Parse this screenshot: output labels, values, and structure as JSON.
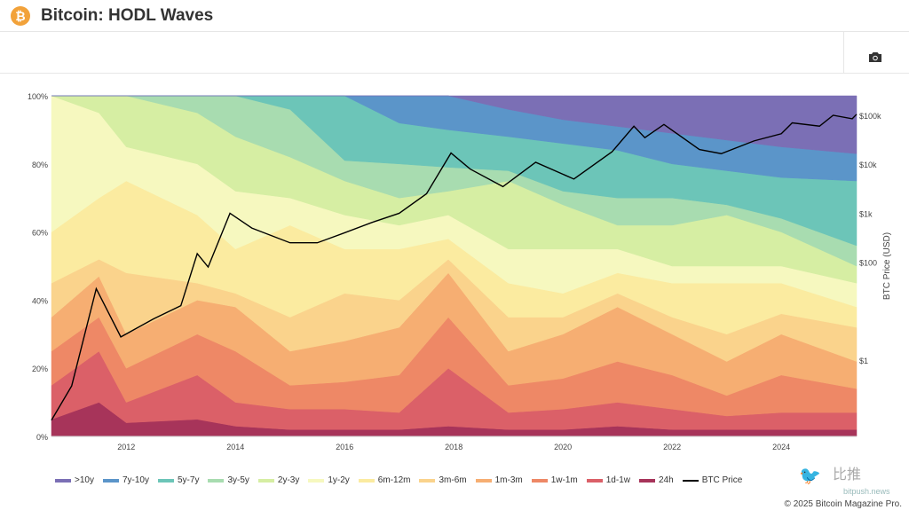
{
  "header": {
    "title": "Bitcoin: HODL Waves",
    "logo_glyph": "₿"
  },
  "toolbar": {
    "icon": "camera-icon"
  },
  "copyright": "© 2025 Bitcoin Magazine Pro.",
  "watermark": {
    "brand": "比推",
    "site": "bitpush.news"
  },
  "chart_data": {
    "type": "area",
    "stacked": true,
    "title": "Bitcoin: HODL Waves",
    "y_left": {
      "ticks": [
        "0%",
        "20%",
        "40%",
        "60%",
        "80%",
        "100%"
      ],
      "range": [
        0,
        100
      ]
    },
    "y_right": {
      "label": "BTC Price (USD)",
      "scale": "log",
      "ticks": [
        {
          "v": 1,
          "t": "$1"
        },
        {
          "v": 100,
          "t": "$100"
        },
        {
          "v": 1000,
          "t": "$1k"
        },
        {
          "v": 10000,
          "t": "$10k"
        },
        {
          "v": 100000,
          "t": "$100k"
        }
      ],
      "range": [
        0.028,
        250000
      ]
    },
    "x": {
      "ticks": [
        "2012",
        "2014",
        "2016",
        "2018",
        "2020",
        "2022",
        "2024"
      ],
      "range": [
        2010.63,
        2025.38
      ]
    },
    "grid": false,
    "legend_placement": "bottom",
    "x_values": [
      2010.63,
      2011.5,
      2012,
      2013.3,
      2014,
      2015,
      2016,
      2017,
      2017.9,
      2019,
      2020,
      2021,
      2022,
      2023,
      2024,
      2025.38
    ],
    "series": [
      {
        "name": "24h",
        "color": "#a7345a",
        "values": [
          5,
          10,
          4,
          5,
          3,
          2,
          2,
          2,
          3,
          2,
          2,
          3,
          2,
          2,
          2,
          2
        ]
      },
      {
        "name": "1d-1w",
        "color": "#db6068",
        "values": [
          10,
          15,
          6,
          13,
          7,
          6,
          6,
          5,
          17,
          5,
          6,
          7,
          6,
          4,
          5,
          5
        ]
      },
      {
        "name": "1w-1m",
        "color": "#ee8866",
        "values": [
          10,
          10,
          10,
          12,
          15,
          7,
          8,
          11,
          15,
          8,
          9,
          12,
          10,
          6,
          11,
          7
        ]
      },
      {
        "name": "1m-3m",
        "color": "#f6ae72",
        "values": [
          10,
          12,
          10,
          10,
          13,
          10,
          12,
          14,
          13,
          10,
          13,
          16,
          12,
          10,
          12,
          8
        ]
      },
      {
        "name": "3m-6m",
        "color": "#fad38c",
        "values": [
          10,
          5,
          18,
          5,
          4,
          10,
          14,
          8,
          4,
          10,
          5,
          4,
          5,
          8,
          6,
          10
        ]
      },
      {
        "name": "6m-12m",
        "color": "#fbeba0",
        "values": [
          15,
          18,
          27,
          20,
          13,
          27,
          13,
          15,
          6,
          10,
          7,
          6,
          10,
          15,
          9,
          6
        ]
      },
      {
        "name": "1y-2y",
        "color": "#f6f8bf",
        "values": [
          40,
          25,
          10,
          15,
          17,
          8,
          10,
          7,
          7,
          10,
          13,
          7,
          5,
          5,
          5,
          7
        ]
      },
      {
        "name": "2y-3y",
        "color": "#d6eea3",
        "values": [
          0,
          5,
          15,
          15,
          16,
          12,
          10,
          8,
          7,
          20,
          13,
          7,
          12,
          15,
          10,
          5
        ]
      },
      {
        "name": "3y-5y",
        "color": "#a8dcb0",
        "values": [
          0,
          0,
          0,
          5,
          12,
          14,
          6,
          10,
          7,
          3,
          4,
          8,
          8,
          3,
          4,
          6
        ]
      },
      {
        "name": "5y-7y",
        "color": "#6cc5b8",
        "values": [
          0,
          0,
          0,
          0,
          0,
          4,
          19,
          12,
          11,
          10,
          14,
          14,
          10,
          10,
          12,
          19
        ]
      },
      {
        "name": "7y-10y",
        "color": "#5b95c9",
        "values": [
          0,
          0,
          0,
          0,
          0,
          0,
          0,
          8,
          10,
          8,
          7,
          7,
          9,
          9,
          9,
          8
        ]
      },
      {
        "name": ">10y",
        "color": "#7b6fb5",
        "values": [
          0,
          0,
          0,
          0,
          0,
          0,
          0,
          0,
          0,
          4,
          7,
          9,
          11,
          13,
          15,
          17
        ]
      }
    ],
    "price": {
      "name": "BTC Price",
      "color": "#000000",
      "x": [
        2010.63,
        2011.0,
        2011.45,
        2011.9,
        2012.5,
        2013.0,
        2013.3,
        2013.5,
        2013.9,
        2014.3,
        2015.0,
        2015.5,
        2016.0,
        2016.5,
        2017.0,
        2017.5,
        2017.95,
        2018.3,
        2018.9,
        2019.5,
        2020.2,
        2020.9,
        2021.3,
        2021.5,
        2021.85,
        2022.5,
        2022.9,
        2023.5,
        2024.0,
        2024.2,
        2024.7,
        2024.95,
        2025.3,
        2025.38
      ],
      "y": [
        0.06,
        0.3,
        29,
        3,
        7,
        13,
        150,
        80,
        1000,
        500,
        250,
        250,
        400,
        650,
        1000,
        2500,
        17000,
        8000,
        3500,
        11000,
        5000,
        18000,
        60000,
        35000,
        65000,
        20000,
        16500,
        30000,
        42000,
        70000,
        60000,
        100000,
        85000,
        105000
      ]
    }
  }
}
